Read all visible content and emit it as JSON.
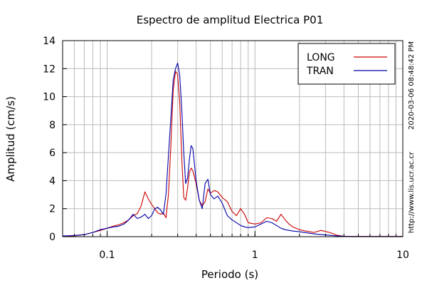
{
  "chart_data": {
    "type": "line",
    "title": "Espectro de amplitud Electrica P01",
    "xlabel": "Periodo (s)",
    "ylabel": "Amplitud (cm/s)",
    "x_scale": "log",
    "xlim": [
      0.05,
      10
    ],
    "ylim": [
      0,
      14
    ],
    "x_ticks": [
      0.1,
      1,
      10
    ],
    "x_tick_labels": [
      "0.1",
      "1",
      "10"
    ],
    "y_ticks": [
      0,
      2,
      4,
      6,
      8,
      10,
      12,
      14
    ],
    "y_tick_labels": [
      "0",
      "2",
      "4",
      "6",
      "8",
      "10",
      "12",
      "14"
    ],
    "grid": true,
    "legend_position": "top-right",
    "side_labels": {
      "timestamp": "2020-03-06 08:48:42 PM",
      "url": "http://www.lis.ucr.ac.cr"
    },
    "series": [
      {
        "name": "LONG",
        "color": "#cc0000",
        "points": [
          [
            0.05,
            0.03
          ],
          [
            0.06,
            0.06
          ],
          [
            0.07,
            0.15
          ],
          [
            0.08,
            0.3
          ],
          [
            0.09,
            0.45
          ],
          [
            0.1,
            0.6
          ],
          [
            0.11,
            0.75
          ],
          [
            0.12,
            0.85
          ],
          [
            0.13,
            1.0
          ],
          [
            0.14,
            1.2
          ],
          [
            0.15,
            1.5
          ],
          [
            0.16,
            1.65
          ],
          [
            0.17,
            2.2
          ],
          [
            0.18,
            3.2
          ],
          [
            0.19,
            2.7
          ],
          [
            0.2,
            2.3
          ],
          [
            0.21,
            2.0
          ],
          [
            0.22,
            1.7
          ],
          [
            0.23,
            1.6
          ],
          [
            0.24,
            1.7
          ],
          [
            0.25,
            1.35
          ],
          [
            0.26,
            3.0
          ],
          [
            0.27,
            6.5
          ],
          [
            0.28,
            10.5
          ],
          [
            0.29,
            11.8
          ],
          [
            0.3,
            11.6
          ],
          [
            0.31,
            9.5
          ],
          [
            0.32,
            5.5
          ],
          [
            0.33,
            2.8
          ],
          [
            0.34,
            2.6
          ],
          [
            0.35,
            3.5
          ],
          [
            0.36,
            4.6
          ],
          [
            0.37,
            4.9
          ],
          [
            0.38,
            4.7
          ],
          [
            0.4,
            3.8
          ],
          [
            0.42,
            2.6
          ],
          [
            0.44,
            2.2
          ],
          [
            0.46,
            2.5
          ],
          [
            0.48,
            3.4
          ],
          [
            0.5,
            3.1
          ],
          [
            0.53,
            3.3
          ],
          [
            0.56,
            3.2
          ],
          [
            0.6,
            2.8
          ],
          [
            0.65,
            2.5
          ],
          [
            0.7,
            1.8
          ],
          [
            0.75,
            1.5
          ],
          [
            0.8,
            2.0
          ],
          [
            0.85,
            1.6
          ],
          [
            0.9,
            1.0
          ],
          [
            1.0,
            0.9
          ],
          [
            1.1,
            1.0
          ],
          [
            1.2,
            1.35
          ],
          [
            1.3,
            1.3
          ],
          [
            1.4,
            1.1
          ],
          [
            1.5,
            1.6
          ],
          [
            1.6,
            1.2
          ],
          [
            1.7,
            0.9
          ],
          [
            1.8,
            0.7
          ],
          [
            2.0,
            0.5
          ],
          [
            2.2,
            0.4
          ],
          [
            2.5,
            0.3
          ],
          [
            2.8,
            0.45
          ],
          [
            3.2,
            0.3
          ],
          [
            3.6,
            0.1
          ],
          [
            4.0,
            0.03
          ],
          [
            5.0,
            0.02
          ],
          [
            10.0,
            0.02
          ]
        ]
      },
      {
        "name": "TRAN",
        "color": "#0000aa",
        "points": [
          [
            0.05,
            0.05
          ],
          [
            0.06,
            0.08
          ],
          [
            0.07,
            0.15
          ],
          [
            0.08,
            0.3
          ],
          [
            0.09,
            0.5
          ],
          [
            0.1,
            0.6
          ],
          [
            0.11,
            0.7
          ],
          [
            0.12,
            0.75
          ],
          [
            0.13,
            0.9
          ],
          [
            0.14,
            1.2
          ],
          [
            0.15,
            1.6
          ],
          [
            0.16,
            1.3
          ],
          [
            0.17,
            1.4
          ],
          [
            0.18,
            1.6
          ],
          [
            0.19,
            1.3
          ],
          [
            0.2,
            1.5
          ],
          [
            0.21,
            2.0
          ],
          [
            0.22,
            2.1
          ],
          [
            0.23,
            1.9
          ],
          [
            0.24,
            1.6
          ],
          [
            0.25,
            3.0
          ],
          [
            0.26,
            5.8
          ],
          [
            0.27,
            8.5
          ],
          [
            0.28,
            11.2
          ],
          [
            0.29,
            12.0
          ],
          [
            0.3,
            12.4
          ],
          [
            0.31,
            11.5
          ],
          [
            0.32,
            9.0
          ],
          [
            0.33,
            6.0
          ],
          [
            0.34,
            3.8
          ],
          [
            0.35,
            4.2
          ],
          [
            0.36,
            5.5
          ],
          [
            0.37,
            6.5
          ],
          [
            0.38,
            6.3
          ],
          [
            0.4,
            4.0
          ],
          [
            0.42,
            2.6
          ],
          [
            0.44,
            2.0
          ],
          [
            0.46,
            3.8
          ],
          [
            0.48,
            4.1
          ],
          [
            0.5,
            3.0
          ],
          [
            0.53,
            2.7
          ],
          [
            0.56,
            2.9
          ],
          [
            0.6,
            2.4
          ],
          [
            0.65,
            1.5
          ],
          [
            0.7,
            1.2
          ],
          [
            0.75,
            1.0
          ],
          [
            0.8,
            0.8
          ],
          [
            0.85,
            0.7
          ],
          [
            0.9,
            0.65
          ],
          [
            1.0,
            0.7
          ],
          [
            1.1,
            0.9
          ],
          [
            1.2,
            1.1
          ],
          [
            1.3,
            1.0
          ],
          [
            1.4,
            0.8
          ],
          [
            1.5,
            0.6
          ],
          [
            1.6,
            0.5
          ],
          [
            1.8,
            0.4
          ],
          [
            2.0,
            0.35
          ],
          [
            2.5,
            0.2
          ],
          [
            3.0,
            0.12
          ],
          [
            3.5,
            0.06
          ],
          [
            4.0,
            0.02
          ],
          [
            5.0,
            0.01
          ],
          [
            10.0,
            0.01
          ]
        ]
      }
    ]
  }
}
